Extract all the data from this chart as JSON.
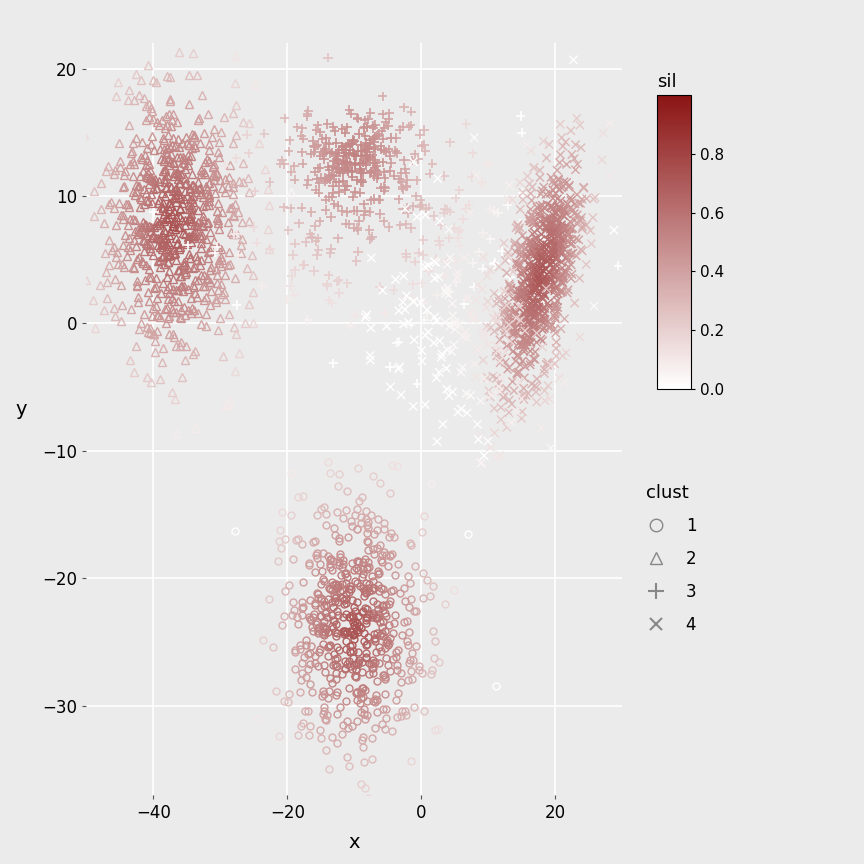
{
  "title": "",
  "xlabel": "x",
  "ylabel": "y",
  "xlim": [
    -50,
    30
  ],
  "ylim": [
    -37,
    22
  ],
  "xticks": [
    -40,
    -20,
    0,
    20
  ],
  "yticks": [
    -30,
    -20,
    -10,
    0,
    10,
    20
  ],
  "background_color": "#EBEBEB",
  "grid_color": "white",
  "colormap_low": "#FFFFFF",
  "colormap_high": "#8B1414",
  "sil_label": "sil",
  "clust_label": "clust",
  "sil_ticks": [
    0.0,
    0.2,
    0.4,
    0.6,
    0.8
  ],
  "random_seed": 42,
  "figsize": [
    8.64,
    8.64
  ],
  "dpi": 100
}
